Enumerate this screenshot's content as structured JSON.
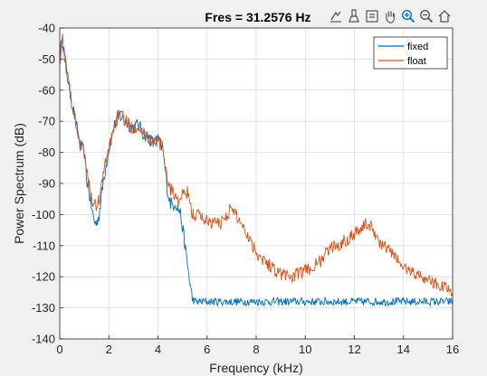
{
  "chart_data": {
    "type": "line",
    "title": "Fres = 31.2576 Hz",
    "xlabel": "Frequency (kHz)",
    "ylabel": "Power Spectrum (dB)",
    "xlim": [
      0,
      16
    ],
    "ylim": [
      -140,
      -40
    ],
    "xticks": [
      "0",
      "2",
      "4",
      "6",
      "8",
      "10",
      "12",
      "14",
      "16"
    ],
    "yticks": [
      "-40",
      "-50",
      "-60",
      "-70",
      "-80",
      "-90",
      "-100",
      "-110",
      "-120",
      "-130",
      "-140"
    ],
    "grid": true,
    "legend_position": "top-right",
    "series": [
      {
        "name": "fixed",
        "color": "#0072BD",
        "x": [
          0,
          0.1,
          0.25,
          0.4,
          0.6,
          0.8,
          1.0,
          1.1,
          1.2,
          1.3,
          1.4,
          1.5,
          1.6,
          1.7,
          1.8,
          2.0,
          2.2,
          2.4,
          2.6,
          2.8,
          3.0,
          3.2,
          3.4,
          3.6,
          3.8,
          4.0,
          4.2,
          4.3,
          4.4,
          4.5,
          4.6,
          4.7,
          4.8,
          4.9,
          5.0,
          5.1,
          5.2,
          5.3,
          5.4,
          5.5,
          6,
          7,
          8,
          9,
          10,
          11,
          12,
          13,
          14,
          15,
          16
        ],
        "y": [
          -50,
          -43,
          -52,
          -60,
          -68,
          -77,
          -80,
          -89,
          -93,
          -98,
          -102,
          -103,
          -100,
          -94,
          -88,
          -79,
          -72,
          -68,
          -69,
          -71,
          -72,
          -71,
          -74,
          -75,
          -77,
          -76,
          -79,
          -86,
          -93,
          -96,
          -97,
          -96,
          -98,
          -99,
          -104,
          -110,
          -116,
          -122,
          -127,
          -128,
          -128,
          -128,
          -128,
          -128,
          -128,
          -128,
          -128,
          -128,
          -128,
          -128,
          -128
        ]
      },
      {
        "name": "float",
        "color": "#D95319",
        "x": [
          0,
          0.1,
          0.25,
          0.4,
          0.6,
          0.8,
          1.0,
          1.1,
          1.2,
          1.3,
          1.4,
          1.5,
          1.6,
          1.7,
          1.8,
          2.0,
          2.2,
          2.4,
          2.6,
          2.8,
          3.0,
          3.2,
          3.4,
          3.6,
          3.8,
          4.0,
          4.2,
          4.3,
          4.4,
          4.5,
          4.6,
          4.8,
          5.0,
          5.2,
          5.4,
          5.6,
          6.0,
          6.5,
          7.0,
          7.5,
          8.0,
          8.5,
          9.0,
          9.5,
          10.0,
          10.5,
          11.0,
          11.5,
          12.0,
          12.5,
          12.8,
          13.0,
          13.5,
          14.0,
          14.5,
          15.0,
          15.5,
          16.0
        ],
        "y": [
          -50,
          -43,
          -52,
          -60,
          -68,
          -77,
          -80,
          -87,
          -90,
          -95,
          -97,
          -97,
          -95,
          -91,
          -86,
          -79,
          -72,
          -68,
          -69,
          -71,
          -72,
          -71,
          -74,
          -75,
          -77,
          -76,
          -79,
          -84,
          -89,
          -92,
          -92,
          -96,
          -94,
          -93,
          -100,
          -100,
          -102,
          -103,
          -98,
          -104,
          -112,
          -116,
          -119,
          -120,
          -118,
          -116,
          -111,
          -109,
          -106,
          -103,
          -105,
          -109,
          -112,
          -117,
          -119,
          -121,
          -123,
          -124
        ]
      }
    ]
  },
  "toolbar": {
    "icons": [
      "export-icon",
      "brush-icon",
      "datatip-icon",
      "pan-icon",
      "zoom-in-icon",
      "zoom-out-icon",
      "home-icon"
    ]
  }
}
